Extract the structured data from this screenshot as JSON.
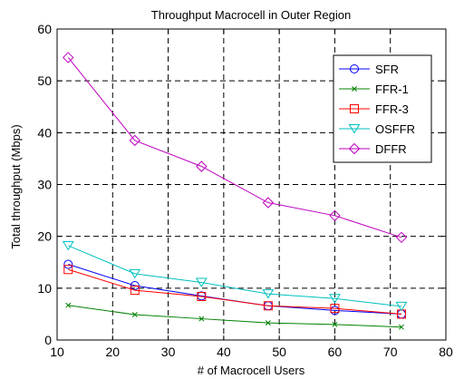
{
  "chart_data": {
    "type": "line",
    "title": "Throughput Macrocell in Outer Region",
    "xlabel": "# of Macrocell Users",
    "ylabel": "Total throughput (Mbps)",
    "xlim": [
      10,
      80
    ],
    "ylim": [
      0,
      60
    ],
    "xticks": [
      10,
      20,
      30,
      40,
      50,
      60,
      70,
      80
    ],
    "yticks": [
      0,
      10,
      20,
      30,
      40,
      50,
      60
    ],
    "grid": true,
    "legend_position": "top-right",
    "x": [
      12,
      24,
      36,
      48,
      60,
      72
    ],
    "series": [
      {
        "name": "SFR",
        "color": "#0000ff",
        "marker": "circle",
        "values": [
          14.6,
          10.5,
          8.5,
          6.6,
          5.7,
          5.0
        ]
      },
      {
        "name": "FFR-1",
        "color": "#008000",
        "marker": "x",
        "values": [
          6.7,
          4.9,
          4.1,
          3.3,
          3.0,
          2.5
        ]
      },
      {
        "name": "FFR-3",
        "color": "#ff0000",
        "marker": "square",
        "values": [
          13.6,
          9.6,
          8.4,
          6.6,
          6.1,
          5.0
        ]
      },
      {
        "name": "OSFFR",
        "color": "#00bfbf",
        "marker": "triangle-down",
        "values": [
          18.2,
          12.8,
          11.1,
          8.9,
          8.0,
          6.5
        ]
      },
      {
        "name": "DFFR",
        "color": "#bf00bf",
        "marker": "diamond",
        "values": [
          54.5,
          38.5,
          33.5,
          26.5,
          24.0,
          19.8
        ]
      }
    ]
  }
}
